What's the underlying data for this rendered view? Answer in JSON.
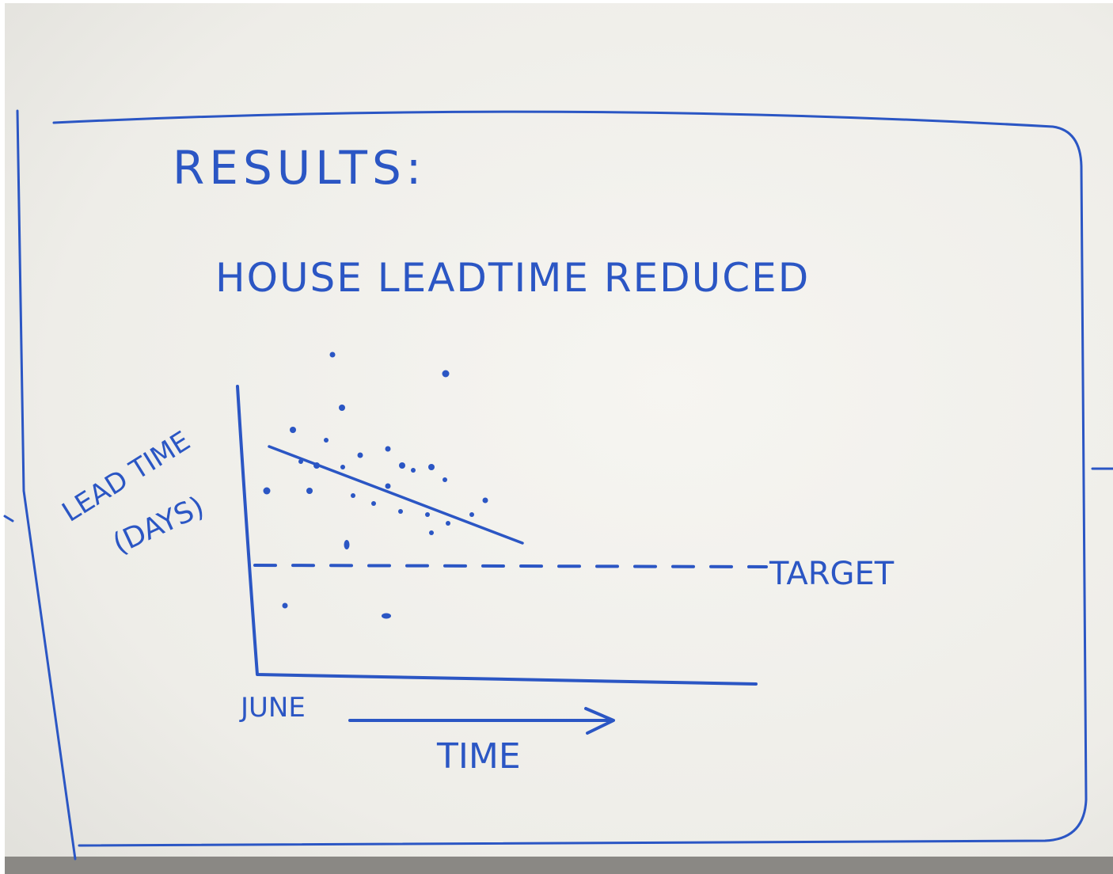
{
  "header": {
    "title": "RESULTS:",
    "subtitle": "HOUSE LEADTIME REDUCED"
  },
  "sketch": {
    "y_label_line1": "LEAD TIME",
    "y_label_line2": "(DAYS)",
    "x_start_label": "JUNE",
    "x_label": "TIME",
    "target_label": "TARGET"
  }
}
